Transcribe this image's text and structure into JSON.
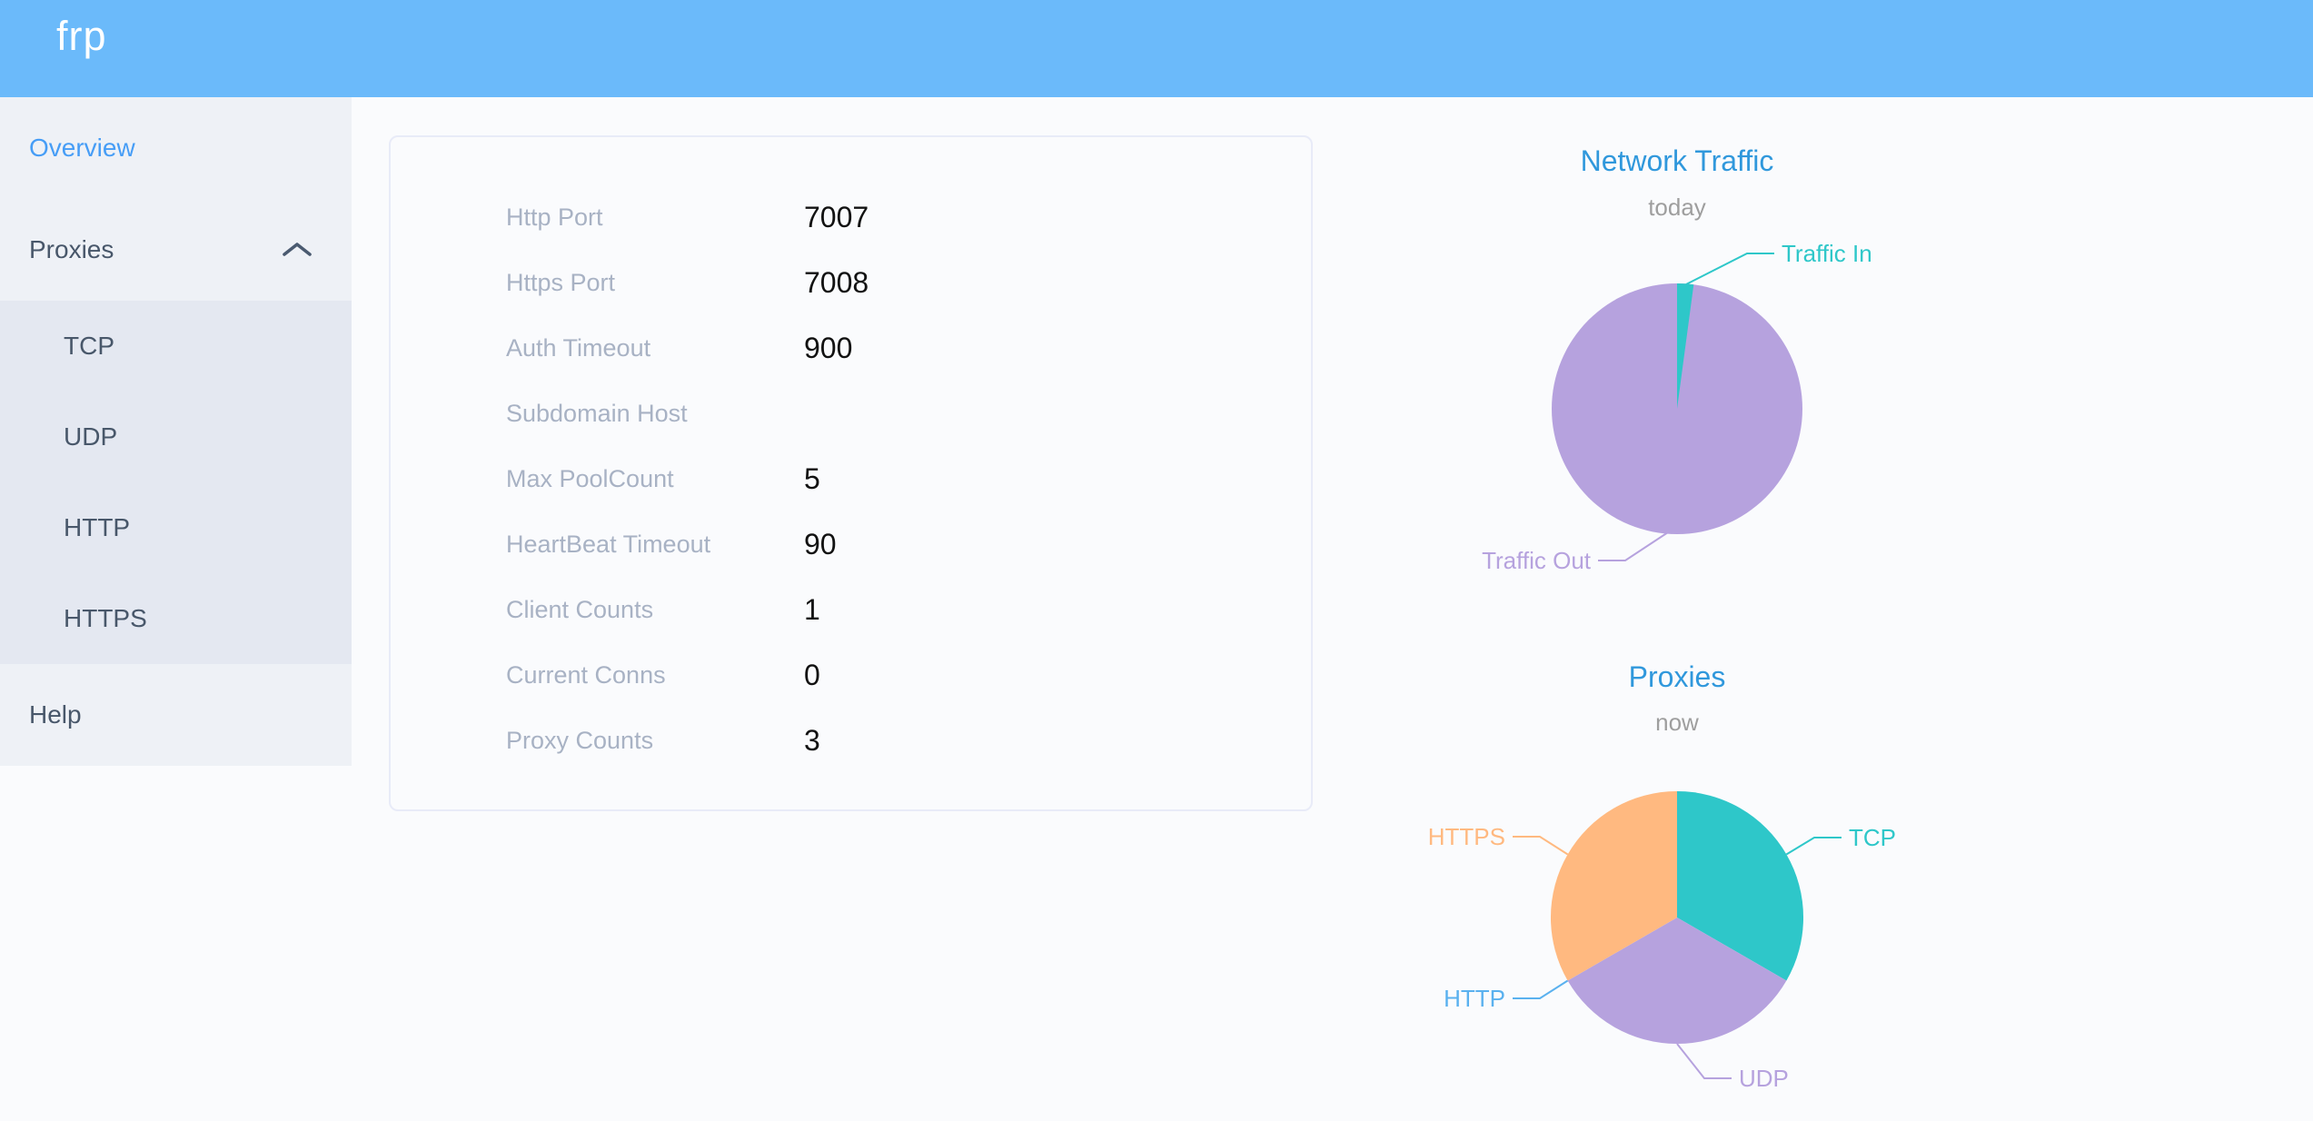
{
  "header": {
    "logo": "frp"
  },
  "sidebar": {
    "items": [
      {
        "label": "Overview",
        "active": true
      },
      {
        "label": "Proxies",
        "expanded": true,
        "children": [
          {
            "label": "TCP"
          },
          {
            "label": "UDP"
          },
          {
            "label": "HTTP"
          },
          {
            "label": "HTTPS"
          }
        ]
      },
      {
        "label": "Help"
      }
    ]
  },
  "panel": {
    "rows": [
      {
        "label": "Http Port",
        "value": "7007"
      },
      {
        "label": "Https Port",
        "value": "7008"
      },
      {
        "label": "Auth Timeout",
        "value": "900"
      },
      {
        "label": "Subdomain Host",
        "value": ""
      },
      {
        "label": "Max PoolCount",
        "value": "5"
      },
      {
        "label": "HeartBeat Timeout",
        "value": "90"
      },
      {
        "label": "Client Counts",
        "value": "1"
      },
      {
        "label": "Current Conns",
        "value": "0"
      },
      {
        "label": "Proxy Counts",
        "value": "3"
      }
    ]
  },
  "chart_data": [
    {
      "type": "pie",
      "title": "Network Traffic",
      "subtitle": "today",
      "legend_position": "none",
      "slices": [
        {
          "name": "Traffic In",
          "percent": 2,
          "color": "#2ec7c9"
        },
        {
          "name": "Traffic Out",
          "percent": 98,
          "color": "#b6a2de"
        }
      ]
    },
    {
      "type": "pie",
      "title": "Proxies",
      "subtitle": "now",
      "legend_position": "none",
      "slices": [
        {
          "name": "TCP",
          "value": 1,
          "color": "#2ec7c9"
        },
        {
          "name": "UDP",
          "value": 1,
          "color": "#b6a2de"
        },
        {
          "name": "HTTP",
          "value": 0,
          "color": "#5ab1ef"
        },
        {
          "name": "HTTPS",
          "value": 1,
          "color": "#ffb980"
        }
      ]
    }
  ],
  "colors": {
    "header": "#6bbafa",
    "active_menu": "#469df6",
    "chart_title": "#3098dc",
    "teal": "#2ec7c9",
    "purple": "#b6a2de",
    "orange": "#ffb980",
    "blue": "#5ab1ef"
  }
}
